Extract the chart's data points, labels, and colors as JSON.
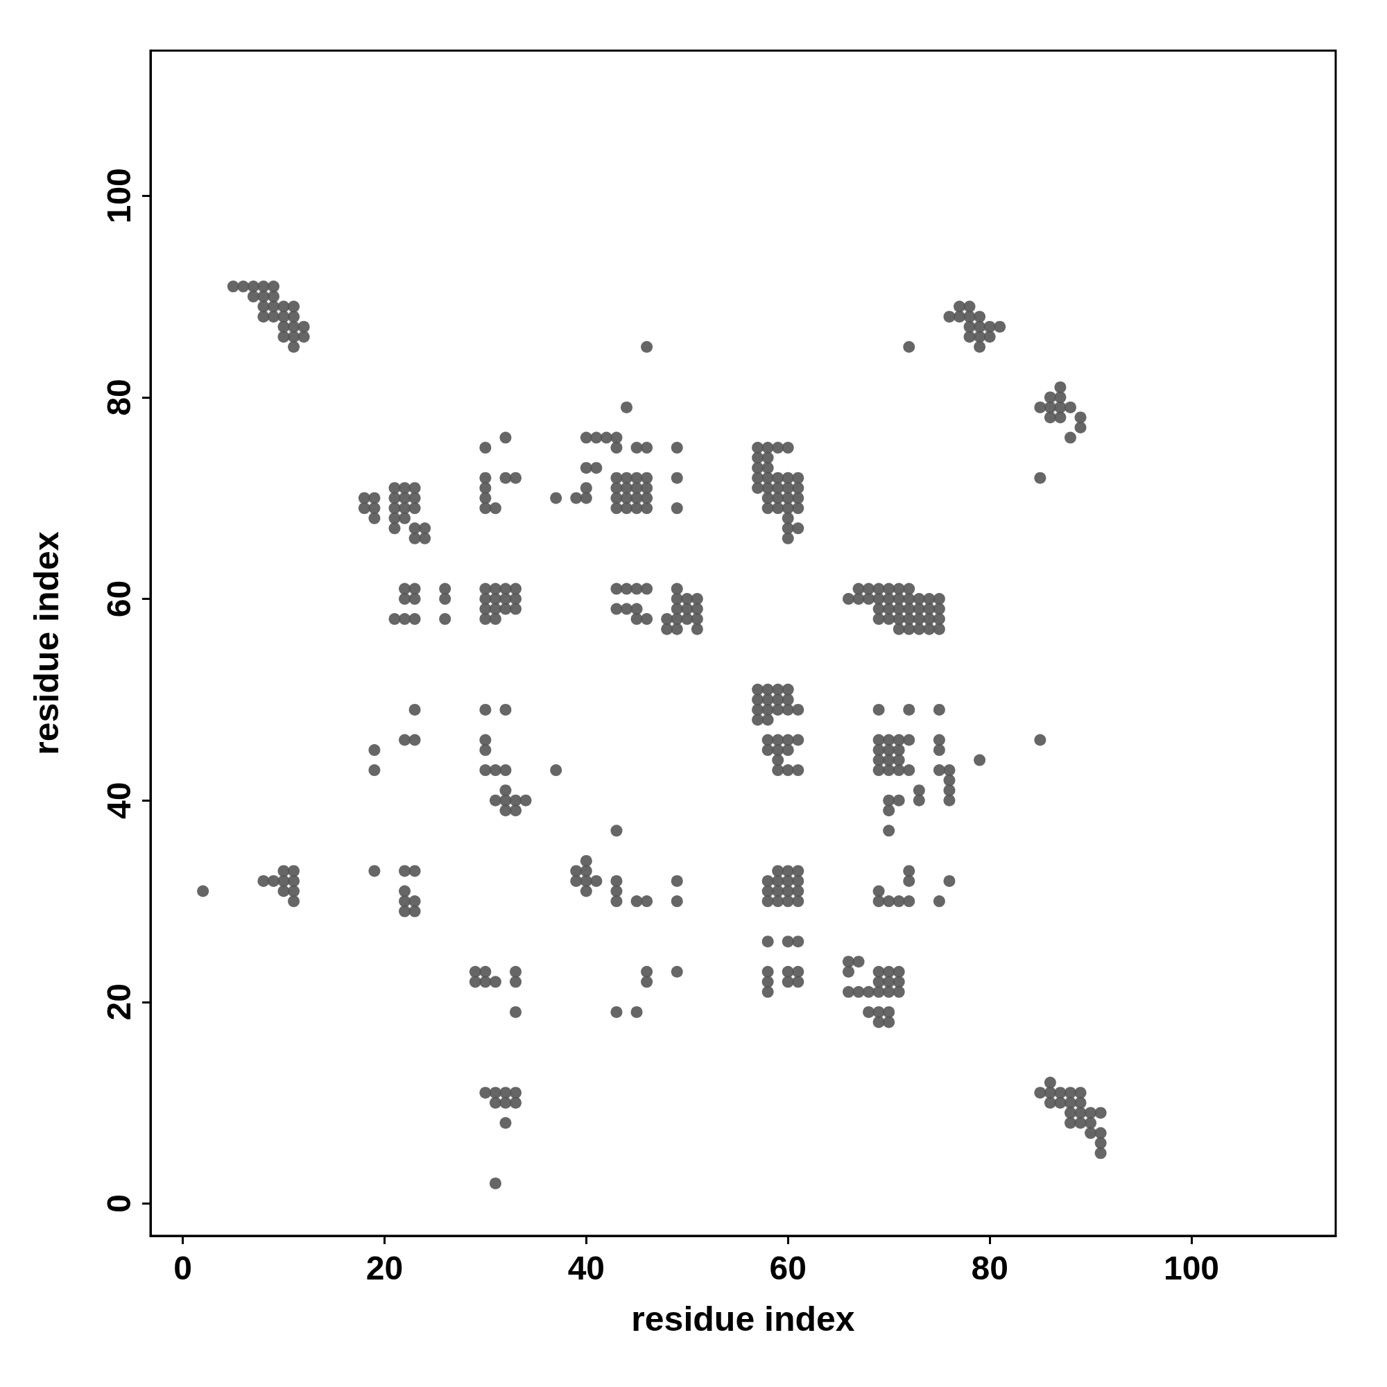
{
  "chart_data": {
    "type": "scatter",
    "xlabel": "residue index",
    "ylabel": "residue index",
    "xlim": [
      -3.2,
      114.3
    ],
    "ylim": [
      -3.2,
      114.4
    ],
    "xticks": [
      0,
      20,
      40,
      60,
      80,
      100
    ],
    "yticks": [
      0,
      20,
      40,
      60,
      80,
      100
    ],
    "grid": false,
    "marker": "circle",
    "series": [
      {
        "color": "#555555",
        "x": [
          5,
          6,
          7,
          8,
          9,
          7,
          8,
          9,
          8,
          9,
          10,
          11,
          77,
          78,
          8,
          9,
          10,
          11,
          76,
          77,
          78,
          79,
          10,
          11,
          12,
          78,
          79,
          80,
          81,
          10,
          11,
          12,
          78,
          79,
          80,
          11,
          46,
          72,
          79,
          87,
          86,
          87,
          44,
          85,
          86,
          87,
          88,
          86,
          87,
          89,
          89,
          32,
          40,
          41,
          42,
          43,
          88,
          30,
          43,
          45,
          46,
          49,
          57,
          58,
          59,
          60,
          57,
          58,
          40,
          41,
          57,
          58,
          30,
          32,
          33,
          43,
          44,
          45,
          46,
          49,
          57,
          58,
          59,
          60,
          61,
          85,
          21,
          22,
          23,
          30,
          40,
          43,
          44,
          45,
          46,
          57,
          58,
          59,
          60,
          61,
          18,
          19,
          21,
          22,
          23,
          30,
          37,
          39,
          40,
          43,
          44,
          45,
          46,
          58,
          59,
          60,
          61,
          18,
          19,
          21,
          22,
          23,
          30,
          31,
          43,
          44,
          45,
          46,
          49,
          58,
          59,
          60,
          61,
          19,
          21,
          22,
          60,
          21,
          23,
          24,
          60,
          61,
          23,
          24,
          60,
          22,
          23,
          26,
          30,
          31,
          32,
          33,
          43,
          44,
          45,
          46,
          49,
          67,
          68,
          69,
          70,
          71,
          72,
          22,
          23,
          26,
          30,
          31,
          32,
          33,
          49,
          50,
          51,
          66,
          67,
          68,
          69,
          70,
          71,
          72,
          73,
          74,
          75,
          30,
          31,
          32,
          33,
          43,
          44,
          45,
          49,
          50,
          51,
          69,
          70,
          71,
          72,
          73,
          74,
          75,
          21,
          22,
          23,
          26,
          30,
          31,
          45,
          46,
          48,
          49,
          50,
          51,
          69,
          70,
          71,
          72,
          73,
          74,
          75,
          48,
          49,
          51,
          71,
          72,
          73,
          74,
          75,
          57,
          58,
          59,
          60,
          57,
          58,
          59,
          60,
          23,
          30,
          32,
          57,
          58,
          59,
          60,
          61,
          69,
          72,
          75,
          57,
          58,
          22,
          23,
          30,
          58,
          59,
          60,
          61,
          69,
          70,
          71,
          72,
          75,
          85,
          19,
          30,
          58,
          59,
          60,
          69,
          70,
          71,
          75,
          59,
          69,
          70,
          71,
          79,
          19,
          30,
          31,
          32,
          37,
          59,
          60,
          61,
          69,
          70,
          71,
          72,
          75,
          76,
          76,
          32,
          73,
          76,
          31,
          32,
          33,
          34,
          70,
          71,
          73,
          76,
          32,
          33,
          70,
          43,
          70,
          40,
          10,
          11,
          19,
          22,
          23,
          39,
          40,
          59,
          60,
          61,
          72,
          8,
          9,
          10,
          11,
          39,
          40,
          41,
          43,
          49,
          58,
          59,
          60,
          61,
          72,
          76,
          2,
          10,
          11,
          22,
          40,
          43,
          58,
          59,
          60,
          61,
          69,
          11,
          22,
          23,
          43,
          45,
          46,
          49,
          58,
          59,
          60,
          61,
          69,
          70,
          71,
          72,
          75,
          22,
          23,
          58,
          60,
          61,
          66,
          67,
          29,
          30,
          33,
          46,
          49,
          58,
          60,
          61,
          66,
          69,
          70,
          71,
          29,
          30,
          31,
          33,
          46,
          58,
          60,
          61,
          69,
          70,
          71,
          58,
          66,
          67,
          68,
          69,
          70,
          71,
          33,
          43,
          45,
          68,
          69,
          70,
          69,
          70,
          86,
          30,
          31,
          32,
          33,
          85,
          86,
          87,
          88,
          89,
          31,
          32,
          33,
          86,
          87,
          88,
          89,
          88,
          89,
          90,
          91,
          32,
          88,
          89,
          90,
          90,
          91,
          91,
          91,
          31
        ],
        "values": [
          91,
          91,
          91,
          91,
          91,
          90,
          90,
          90,
          89,
          89,
          89,
          89,
          89,
          89,
          88,
          88,
          88,
          88,
          88,
          88,
          88,
          88,
          87,
          87,
          87,
          87,
          87,
          87,
          87,
          86,
          86,
          86,
          86,
          86,
          86,
          85,
          85,
          85,
          85,
          81,
          80,
          80,
          79,
          79,
          79,
          79,
          79,
          78,
          78,
          78,
          77,
          76,
          76,
          76,
          76,
          76,
          76,
          75,
          75,
          75,
          75,
          75,
          75,
          75,
          75,
          75,
          74,
          74,
          73,
          73,
          73,
          73,
          72,
          72,
          72,
          72,
          72,
          72,
          72,
          72,
          72,
          72,
          72,
          72,
          72,
          72,
          71,
          71,
          71,
          71,
          71,
          71,
          71,
          71,
          71,
          71,
          71,
          71,
          71,
          71,
          70,
          70,
          70,
          70,
          70,
          70,
          70,
          70,
          70,
          70,
          70,
          70,
          70,
          70,
          70,
          70,
          70,
          69,
          69,
          69,
          69,
          69,
          69,
          69,
          69,
          69,
          69,
          69,
          69,
          69,
          69,
          69,
          69,
          68,
          68,
          68,
          68,
          67,
          67,
          67,
          67,
          67,
          66,
          66,
          66,
          61,
          61,
          61,
          61,
          61,
          61,
          61,
          61,
          61,
          61,
          61,
          61,
          61,
          61,
          61,
          61,
          61,
          61,
          60,
          60,
          60,
          60,
          60,
          60,
          60,
          60,
          60,
          60,
          60,
          60,
          60,
          60,
          60,
          60,
          60,
          60,
          60,
          60,
          59,
          59,
          59,
          59,
          59,
          59,
          59,
          59,
          59,
          59,
          59,
          59,
          59,
          59,
          59,
          59,
          59,
          58,
          58,
          58,
          58,
          58,
          58,
          58,
          58,
          58,
          58,
          58,
          58,
          58,
          58,
          58,
          58,
          58,
          58,
          58,
          57,
          57,
          57,
          57,
          57,
          57,
          57,
          57,
          51,
          51,
          51,
          51,
          50,
          50,
          50,
          50,
          49,
          49,
          49,
          49,
          49,
          49,
          49,
          49,
          49,
          49,
          49,
          48,
          48,
          46,
          46,
          46,
          46,
          46,
          46,
          46,
          46,
          46,
          46,
          46,
          46,
          46,
          45,
          45,
          45,
          45,
          45,
          45,
          45,
          45,
          45,
          44,
          44,
          44,
          44,
          44,
          43,
          43,
          43,
          43,
          43,
          43,
          43,
          43,
          43,
          43,
          43,
          43,
          43,
          43,
          42,
          41,
          41,
          41,
          40,
          40,
          40,
          40,
          40,
          40,
          40,
          40,
          39,
          39,
          39,
          37,
          37,
          34,
          33,
          33,
          33,
          33,
          33,
          33,
          33,
          33,
          33,
          33,
          33,
          32,
          32,
          32,
          32,
          32,
          32,
          32,
          32,
          32,
          32,
          32,
          32,
          32,
          32,
          32,
          31,
          31,
          31,
          31,
          31,
          31,
          31,
          31,
          31,
          31,
          31,
          30,
          30,
          30,
          30,
          30,
          30,
          30,
          30,
          30,
          30,
          30,
          30,
          30,
          30,
          30,
          30,
          29,
          29,
          26,
          26,
          26,
          24,
          24,
          23,
          23,
          23,
          23,
          23,
          23,
          23,
          23,
          23,
          23,
          23,
          23,
          22,
          22,
          22,
          22,
          22,
          22,
          22,
          22,
          22,
          22,
          22,
          21,
          21,
          21,
          21,
          21,
          21,
          21,
          19,
          19,
          19,
          19,
          19,
          19,
          18,
          18,
          12,
          11,
          11,
          11,
          11,
          11,
          11,
          11,
          11,
          11,
          10,
          10,
          10,
          10,
          10,
          10,
          10,
          9,
          9,
          9,
          9,
          8,
          8,
          8,
          8,
          7,
          7,
          6,
          5,
          2
        ]
      }
    ]
  }
}
